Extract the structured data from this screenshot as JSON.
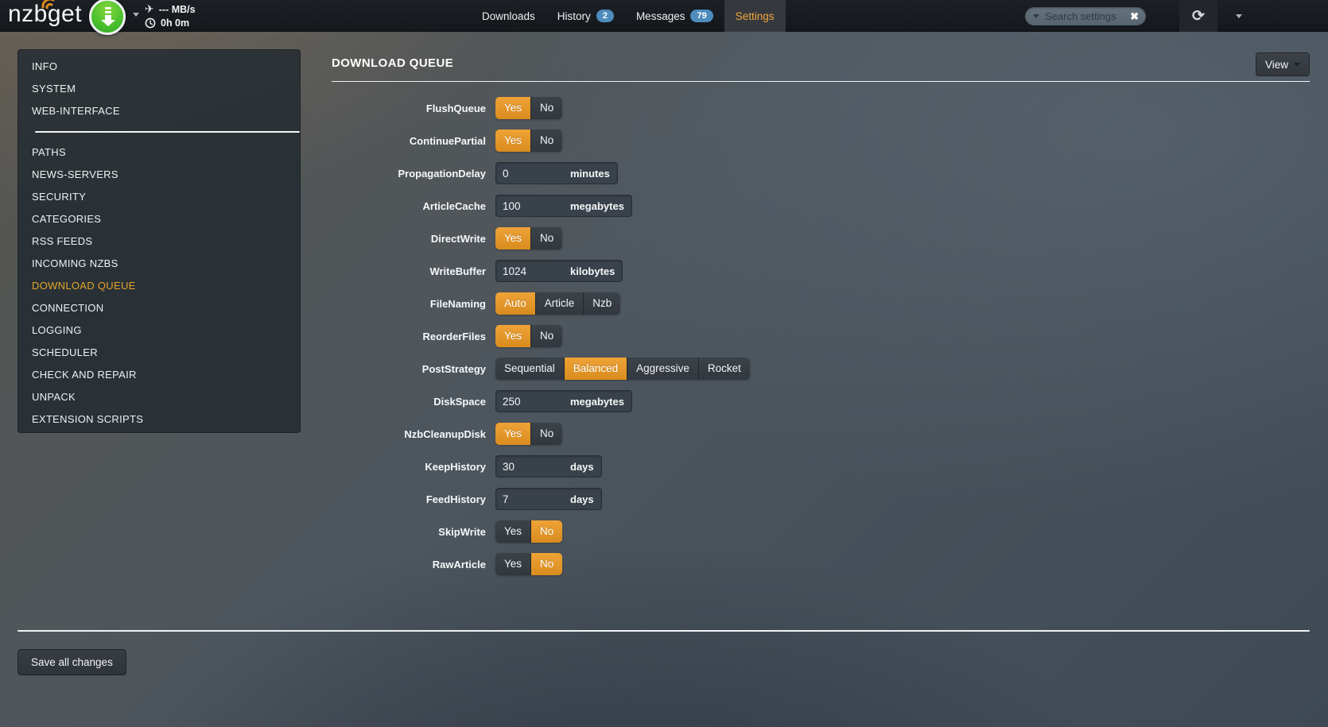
{
  "topbar": {
    "logo": "nzbget",
    "speed": "--- MB/s",
    "time_left": "0h 0m",
    "nav": [
      {
        "label": "Downloads",
        "badge": null,
        "active": false
      },
      {
        "label": "History",
        "badge": "2",
        "active": false
      },
      {
        "label": "Messages",
        "badge": "79",
        "active": false
      },
      {
        "label": "Settings",
        "badge": null,
        "active": true
      }
    ],
    "search": {
      "placeholder": "Search settings"
    }
  },
  "icons": {
    "refresh": "⟳",
    "clear": "✖",
    "plane": "✈"
  },
  "sidebar": {
    "active": "DOWNLOAD QUEUE",
    "groups": [
      {
        "items": [
          "INFO",
          "SYSTEM",
          "WEB-INTERFACE"
        ]
      },
      {
        "items": [
          "PATHS",
          "NEWS-SERVERS",
          "SECURITY",
          "CATEGORIES",
          "RSS FEEDS",
          "INCOMING NZBS",
          "DOWNLOAD QUEUE",
          "CONNECTION",
          "LOGGING",
          "SCHEDULER",
          "CHECK AND REPAIR",
          "UNPACK",
          "EXTENSION SCRIPTS"
        ]
      }
    ]
  },
  "main": {
    "title": "DOWNLOAD QUEUE",
    "view_button": "View",
    "save_button": "Save all changes",
    "rows": [
      {
        "label": "FlushQueue",
        "type": "switch",
        "options": [
          "Yes",
          "No"
        ],
        "selected": "Yes"
      },
      {
        "label": "ContinuePartial",
        "type": "switch",
        "options": [
          "Yes",
          "No"
        ],
        "selected": "Yes"
      },
      {
        "label": "PropagationDelay",
        "type": "input",
        "value": "0",
        "unit": "minutes"
      },
      {
        "label": "ArticleCache",
        "type": "input",
        "value": "100",
        "unit": "megabytes"
      },
      {
        "label": "DirectWrite",
        "type": "switch",
        "options": [
          "Yes",
          "No"
        ],
        "selected": "Yes"
      },
      {
        "label": "WriteBuffer",
        "type": "input",
        "value": "1024",
        "unit": "kilobytes"
      },
      {
        "label": "FileNaming",
        "type": "switch",
        "options": [
          "Auto",
          "Article",
          "Nzb"
        ],
        "selected": "Auto"
      },
      {
        "label": "ReorderFiles",
        "type": "switch",
        "options": [
          "Yes",
          "No"
        ],
        "selected": "Yes"
      },
      {
        "label": "PostStrategy",
        "type": "switch",
        "options": [
          "Sequential",
          "Balanced",
          "Aggressive",
          "Rocket"
        ],
        "selected": "Balanced"
      },
      {
        "label": "DiskSpace",
        "type": "input",
        "value": "250",
        "unit": "megabytes"
      },
      {
        "label": "NzbCleanupDisk",
        "type": "switch",
        "options": [
          "Yes",
          "No"
        ],
        "selected": "Yes"
      },
      {
        "label": "KeepHistory",
        "type": "input",
        "value": "30",
        "unit": "days"
      },
      {
        "label": "FeedHistory",
        "type": "input",
        "value": "7",
        "unit": "days"
      },
      {
        "label": "SkipWrite",
        "type": "switch",
        "options": [
          "Yes",
          "No"
        ],
        "selected": "No"
      },
      {
        "label": "RawArticle",
        "type": "switch",
        "options": [
          "Yes",
          "No"
        ],
        "selected": "No"
      }
    ]
  },
  "colors": {
    "accent_orange": "#e2952c",
    "badge_blue": "#4d8cbc",
    "topbar_bg": "#16191d"
  }
}
